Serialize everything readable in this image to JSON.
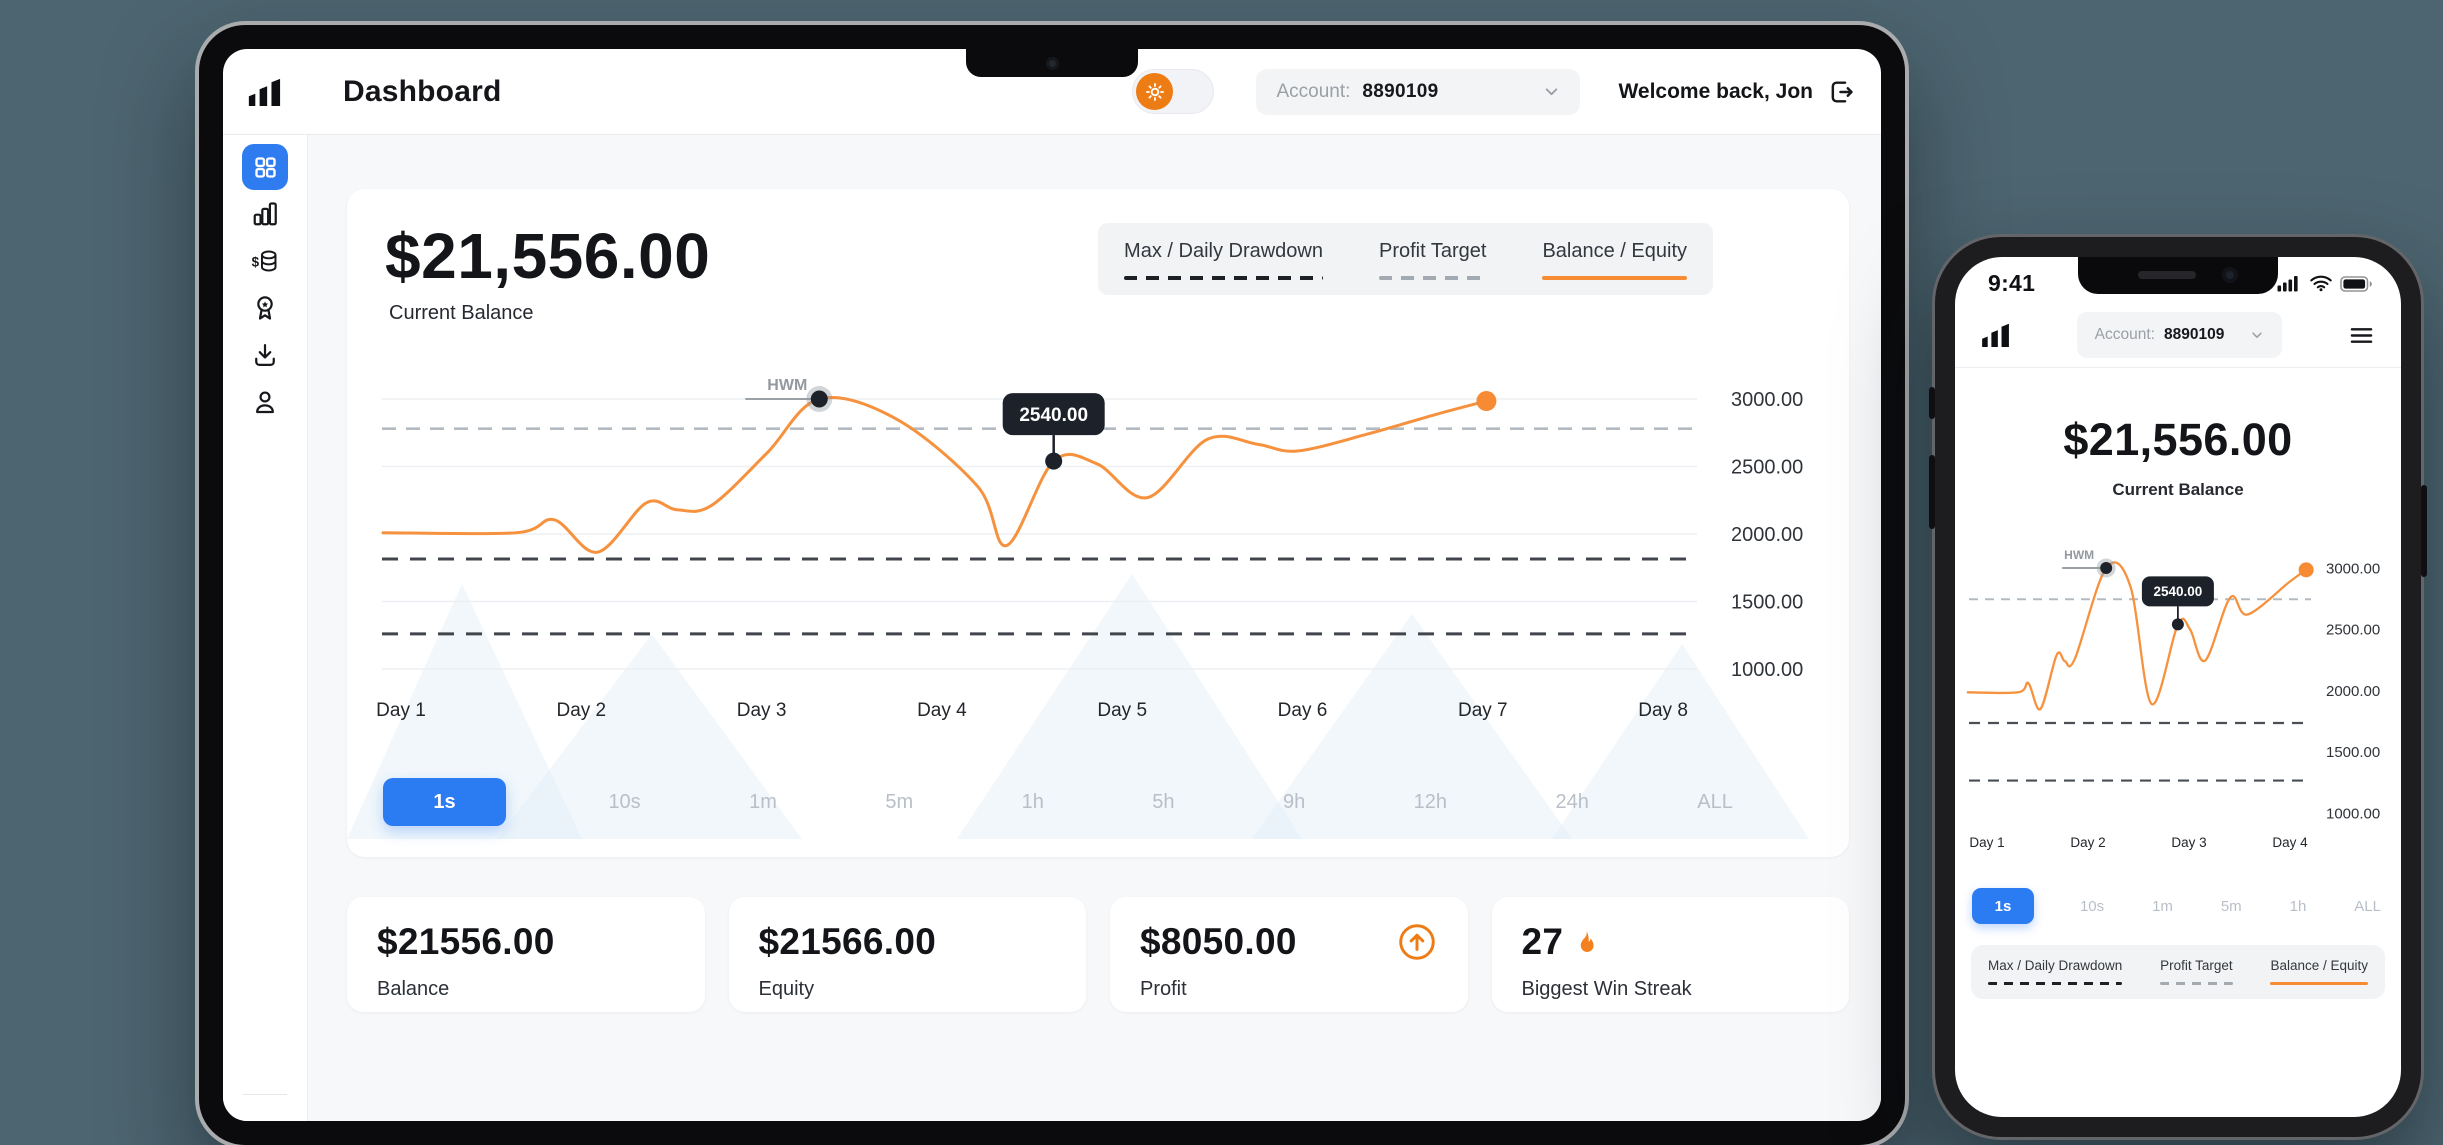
{
  "tablet": {
    "title": "Dashboard",
    "sidebar_icons": [
      "dashboard-grid",
      "bar-chart",
      "coins",
      "award",
      "download",
      "user"
    ],
    "sidebar_active_index": 0,
    "header": {
      "account_label": "Account:",
      "account_value": "8890109",
      "welcome": "Welcome back, Jon"
    },
    "balance": {
      "value": "$21,556.00",
      "label": "Current Balance"
    },
    "legend": [
      {
        "label": "Max / Daily Drawdown",
        "style": "dashed-dark"
      },
      {
        "label": "Profit Target",
        "style": "dashed-light"
      },
      {
        "label": "Balance / Equity",
        "style": "solid-orange"
      }
    ],
    "timeframes": [
      "1s",
      "10s",
      "1m",
      "5m",
      "1h",
      "5h",
      "9h",
      "12h",
      "24h",
      "ALL"
    ],
    "active_timeframe": "1s",
    "stats": [
      {
        "value": "$21556.00",
        "label": "Balance",
        "icon": null
      },
      {
        "value": "$21566.00",
        "label": "Equity",
        "icon": null
      },
      {
        "value": "$8050.00",
        "label": "Profit",
        "icon": "arrow-up-circle"
      },
      {
        "value": "27",
        "label": "Biggest Win Streak",
        "icon": "flame"
      }
    ]
  },
  "phone": {
    "status_time": "9:41",
    "status_icons": [
      "signal",
      "wifi",
      "battery"
    ],
    "account_label": "Account:",
    "account_value": "8890109",
    "balance": {
      "value": "$21,556.00",
      "label": "Current Balance"
    },
    "timeframes": [
      "1s",
      "10s",
      "1m",
      "5m",
      "1h",
      "ALL"
    ],
    "active_timeframe": "1s",
    "legend": [
      {
        "label": "Max / Daily Drawdown",
        "style": "dashed-dark"
      },
      {
        "label": "Profit Target",
        "style": "dashed-light"
      },
      {
        "label": "Balance / Equity",
        "style": "solid-orange"
      }
    ]
  },
  "colors": {
    "accent_blue": "#2e7cf0",
    "line_orange": "#f6913e",
    "toggle_orange": "#ee7c15",
    "tooltip_bg": "#1d212a"
  },
  "chart_data": [
    {
      "id": "tablet-balance-chart",
      "type": "line",
      "title": "Balance / Equity over days",
      "xlabel": "",
      "ylabel": "",
      "ylim": [
        1000,
        3000
      ],
      "grid": true,
      "xticks": [
        "Day 1",
        "Day 2",
        "Day 3",
        "Day 4",
        "Day 5",
        "Day 6",
        "Day 7",
        "Day 8"
      ],
      "yticks": [
        {
          "label": "3000.00",
          "value": 3000
        },
        {
          "label": "2500.00",
          "value": 2500
        },
        {
          "label": "2000.00",
          "value": 2000
        },
        {
          "label": "1500.00",
          "value": 1500
        },
        {
          "label": "1000.00",
          "value": 1000
        }
      ],
      "series": [
        {
          "name": "Balance / Equity",
          "points": [
            [
              0.9,
              2010
            ],
            [
              1.64,
              2010
            ],
            [
              1.85,
              2105
            ],
            [
              2.09,
              1865
            ],
            [
              2.36,
              2230
            ],
            [
              2.53,
              2180
            ],
            [
              2.72,
              2210
            ],
            [
              3.03,
              2600
            ],
            [
              3.32,
              3000
            ],
            [
              3.75,
              2850
            ],
            [
              4.2,
              2350
            ],
            [
              4.36,
              1915
            ],
            [
              4.62,
              2540
            ],
            [
              4.86,
              2520
            ],
            [
              5.14,
              2270
            ],
            [
              5.47,
              2700
            ],
            [
              5.75,
              2665
            ],
            [
              5.97,
              2615
            ],
            [
              6.36,
              2740
            ],
            [
              6.75,
              2890
            ],
            [
              7.02,
              2985
            ]
          ]
        }
      ],
      "reference_lines": [
        {
          "name": "profit-target",
          "value": 2780,
          "style": "dashed-light"
        },
        {
          "name": "daily-drawdown",
          "value": 1815,
          "style": "dashed-dark"
        },
        {
          "name": "max-drawdown",
          "value": 1260,
          "style": "dashed-dark"
        }
      ],
      "annotations": {
        "hwm": {
          "label": "HWM",
          "x": 3.32,
          "value": 3000
        },
        "tooltip": {
          "label": "2540.00",
          "x": 4.62,
          "value": 2540
        },
        "end_marker": {
          "x": 7.02,
          "value": 2985
        }
      }
    },
    {
      "id": "phone-balance-chart",
      "type": "line",
      "title": "Balance / Equity over days",
      "xlabel": "",
      "ylabel": "",
      "ylim": [
        1000,
        3000
      ],
      "grid": false,
      "xticks": [
        "Day 1",
        "Day 2",
        "Day 3",
        "Day 4"
      ],
      "yticks": [
        {
          "label": "3000.00",
          "value": 3000
        },
        {
          "label": "2500.00",
          "value": 2500
        },
        {
          "label": "2000.00",
          "value": 2000
        },
        {
          "label": "1500.00",
          "value": 1500
        },
        {
          "label": "1000.00",
          "value": 1000
        }
      ],
      "series": [
        {
          "name": "Balance / Equity",
          "points": [
            [
              0.81,
              1985
            ],
            [
              1.31,
              1985
            ],
            [
              1.41,
              2060
            ],
            [
              1.53,
              1850
            ],
            [
              1.69,
              2290
            ],
            [
              1.77,
              2240
            ],
            [
              1.87,
              2260
            ],
            [
              2.18,
              3000
            ],
            [
              2.42,
              2850
            ],
            [
              2.63,
              1890
            ],
            [
              2.89,
              2540
            ],
            [
              3.01,
              2500
            ],
            [
              3.16,
              2245
            ],
            [
              3.41,
              2760
            ],
            [
              3.58,
              2620
            ],
            [
              4.0,
              2890
            ],
            [
              4.16,
              2985
            ]
          ]
        }
      ],
      "reference_lines": [
        {
          "name": "profit-target",
          "value": 2745,
          "style": "dashed-light"
        },
        {
          "name": "daily-drawdown",
          "value": 1735,
          "style": "dashed-dark"
        },
        {
          "name": "max-drawdown",
          "value": 1265,
          "style": "dashed-dark"
        }
      ],
      "annotations": {
        "hwm": {
          "label": "HWM",
          "x": 2.18,
          "value": 3000
        },
        "tooltip": {
          "label": "2540.00",
          "x": 2.89,
          "value": 2540
        },
        "end_marker": {
          "x": 4.16,
          "value": 2985
        }
      }
    }
  ]
}
